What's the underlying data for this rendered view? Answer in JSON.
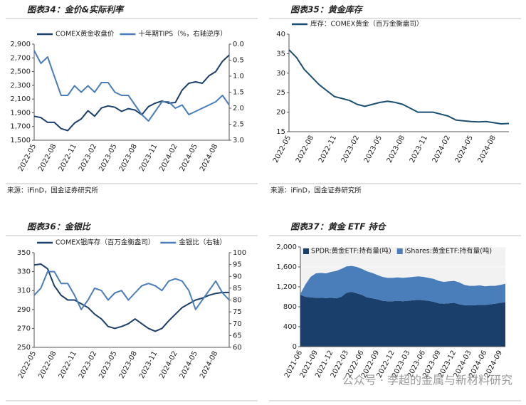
{
  "chart_data": [
    {
      "type": "line",
      "title": "图表34：金价&实际利率",
      "source": "来源：iFinD，国金证券研究所",
      "categories": [
        "2022-05",
        "2022-06",
        "2022-07",
        "2022-08",
        "2022-09",
        "2022-10",
        "2022-11",
        "2022-12",
        "2023-01",
        "2023-02",
        "2023-03",
        "2023-04",
        "2023-05",
        "2023-06",
        "2023-07",
        "2023-08",
        "2023-09",
        "2023-10",
        "2023-11",
        "2023-12",
        "2024-01",
        "2024-02",
        "2024-03",
        "2024-04",
        "2024-05",
        "2024-06",
        "2024-07",
        "2024-08",
        "2024-09",
        "2024-10"
      ],
      "xticks": [
        "2022-05",
        "2022-08",
        "2022-11",
        "2023-02",
        "2023-05",
        "2023-08",
        "2023-11",
        "2024-02",
        "2024-05",
        "2024-08"
      ],
      "ylim": [
        1500,
        2900
      ],
      "yticks": [
        {
          "value": 1500,
          "label": "1,500"
        },
        {
          "value": 1700,
          "label": "1,700"
        },
        {
          "value": 1900,
          "label": "1,900"
        },
        {
          "value": 2100,
          "label": "2,100"
        },
        {
          "value": 2300,
          "label": "2,300"
        },
        {
          "value": 2500,
          "label": "2,500"
        },
        {
          "value": 2700,
          "label": "2,700"
        },
        {
          "value": 2900,
          "label": "2,900"
        }
      ],
      "y2lim": [
        3,
        0
      ],
      "y2ticks": [
        {
          "value": 0,
          "label": "0.0"
        },
        0.5,
        {
          "value": 1,
          "label": "1.0"
        },
        1.5,
        {
          "value": 2,
          "label": "2.0"
        },
        2.5,
        {
          "value": 3,
          "label": "3.0"
        }
      ],
      "series": [
        {
          "name": "COMEX黄金收盘价",
          "color": "#1b3f6b",
          "values": [
            1850,
            1830,
            1760,
            1760,
            1670,
            1640,
            1750,
            1810,
            1930,
            1850,
            1970,
            2000,
            1980,
            1920,
            1960,
            1940,
            1870,
            1990,
            2040,
            2070,
            2040,
            2050,
            2230,
            2330,
            2350,
            2330,
            2440,
            2500,
            2650,
            2740
          ]
        },
        {
          "name": "十年期TIPS（%，右轴逆序）",
          "color": "#4a7ebb",
          "axis": "y2",
          "values": [
            0.2,
            0.6,
            0.4,
            1.0,
            1.6,
            1.6,
            1.3,
            1.5,
            1.3,
            1.5,
            1.2,
            1.2,
            1.5,
            1.6,
            1.6,
            1.9,
            2.2,
            2.4,
            2.1,
            1.8,
            1.8,
            2.0,
            1.9,
            2.2,
            2.1,
            2.0,
            1.9,
            1.8,
            1.6,
            1.9
          ]
        }
      ]
    },
    {
      "type": "line",
      "title": "图表35：黄金库存",
      "source": "来源：iFinD，国金证券研究所",
      "categories": [
        "2022-05",
        "2022-06",
        "2022-07",
        "2022-08",
        "2022-09",
        "2022-10",
        "2022-11",
        "2022-12",
        "2023-01",
        "2023-02",
        "2023-03",
        "2023-04",
        "2023-05",
        "2023-06",
        "2023-07",
        "2023-08",
        "2023-09",
        "2023-10",
        "2023-11",
        "2023-12",
        "2024-01",
        "2024-02",
        "2024-03",
        "2024-04",
        "2024-05",
        "2024-06",
        "2024-07",
        "2024-08",
        "2024-09",
        "2024-10"
      ],
      "xticks": [
        "2022-05",
        "2022-08",
        "2022-11",
        "2023-02",
        "2023-05",
        "2023-08",
        "2023-11",
        "2024-02",
        "2024-05",
        "2024-08"
      ],
      "ylim": [
        15,
        40
      ],
      "yticks": [
        15,
        20,
        25,
        30,
        35,
        40
      ],
      "series": [
        {
          "name": "库存：COMEX黄金（百万金衡盎司）",
          "color": "#1b4f72",
          "values": [
            36,
            34,
            31,
            29,
            27,
            25.5,
            24,
            23.5,
            23,
            22,
            21.5,
            22,
            22.5,
            22.8,
            22.5,
            22,
            21,
            20,
            20,
            20,
            19.5,
            19,
            18,
            17.8,
            17.6,
            17.5,
            17.6,
            17.3,
            17.0,
            17.1
          ]
        }
      ]
    },
    {
      "type": "line",
      "title": "图表36：金银比",
      "source": "来源：iFinD，国金证券研究所",
      "categories": [
        "2022-05",
        "2022-06",
        "2022-07",
        "2022-08",
        "2022-09",
        "2022-10",
        "2022-11",
        "2022-12",
        "2023-01",
        "2023-02",
        "2023-03",
        "2023-04",
        "2023-05",
        "2023-06",
        "2023-07",
        "2023-08",
        "2023-09",
        "2023-10",
        "2023-11",
        "2023-12",
        "2024-01",
        "2024-02",
        "2024-03",
        "2024-04",
        "2024-05",
        "2024-06",
        "2024-07",
        "2024-08",
        "2024-09",
        "2024-10"
      ],
      "xticks": [
        "2022-05",
        "2022-08",
        "2022-11",
        "2023-02",
        "2023-05",
        "2023-08",
        "2023-11",
        "2024-02",
        "2024-05",
        "2024-08"
      ],
      "ylim": [
        250,
        350
      ],
      "yticks": [
        250,
        270,
        290,
        310,
        330,
        350
      ],
      "y2lim": [
        60,
        100
      ],
      "y2ticks": [
        60,
        65,
        70,
        75,
        80,
        85,
        90,
        95,
        100
      ],
      "series": [
        {
          "name": "COMEX银库存（百万金衡盎司）",
          "color": "#1b3f6b",
          "values": [
            337,
            338,
            333,
            315,
            305,
            300,
            300,
            296,
            292,
            285,
            280,
            272,
            270,
            272,
            275,
            280,
            275,
            270,
            267,
            270,
            278,
            285,
            292,
            296,
            300,
            302,
            305,
            307,
            308,
            308
          ]
        },
        {
          "name": "金银比（右轴）",
          "color": "#4a7ebb",
          "axis": "y2",
          "values": [
            82,
            85,
            92,
            92,
            87,
            87,
            82,
            76,
            80,
            85,
            84,
            80,
            83,
            84,
            80,
            83,
            86,
            87,
            86,
            84,
            88,
            89,
            88,
            84,
            76,
            80,
            84,
            88,
            83,
            80
          ]
        }
      ]
    },
    {
      "type": "area",
      "title": "图表37：黄金 ETF 持仓",
      "source": "来源：iFinD，国金证券研究所",
      "categories": [
        "2021-06",
        "2021-07",
        "2021-08",
        "2021-09",
        "2021-10",
        "2021-11",
        "2021-12",
        "2022-01",
        "2022-02",
        "2022-03",
        "2022-04",
        "2022-05",
        "2022-06",
        "2022-07",
        "2022-08",
        "2022-09",
        "2022-10",
        "2022-11",
        "2022-12",
        "2023-01",
        "2023-02",
        "2023-03",
        "2023-04",
        "2023-05",
        "2023-06",
        "2023-07",
        "2023-08",
        "2023-09",
        "2023-10",
        "2023-11",
        "2023-12",
        "2024-01",
        "2024-02",
        "2024-03",
        "2024-04",
        "2024-05",
        "2024-06",
        "2024-07",
        "2024-08",
        "2024-09",
        "2024-10"
      ],
      "xticks": [
        "2021-06",
        "2021-09",
        "2021-12",
        "2022-03",
        "2022-06",
        "2022-09",
        "2022-12",
        "2023-03",
        "2023-06",
        "2023-09",
        "2023-12",
        "2024-03",
        "2024-06",
        "2024-09"
      ],
      "ylim": [
        0,
        2000
      ],
      "yticks": [
        0,
        400,
        800,
        {
          "value": 1200,
          "label": "1,200"
        },
        {
          "value": 1600,
          "label": "1,600"
        },
        {
          "value": 2000,
          "label": "2,000"
        }
      ],
      "series": [
        {
          "name": "SPDR:黄金ETF:持有量(吨)",
          "color": "#1b3f6b",
          "values": [
            1040,
            1000,
            990,
            980,
            980,
            975,
            980,
            970,
            1000,
            1080,
            1100,
            1070,
            1040,
            990,
            970,
            950,
            920,
            910,
            910,
            920,
            910,
            920,
            930,
            940,
            930,
            920,
            900,
            870,
            860,
            870,
            880,
            850,
            830,
            830,
            830,
            840,
            835,
            850,
            860,
            880,
            890
          ]
        },
        {
          "name": "iShares:黄金ETF:持有量(吨)",
          "color": "#4a7ebb",
          "values": [
            20,
            250,
            410,
            490,
            500,
            495,
            520,
            550,
            560,
            530,
            520,
            530,
            520,
            520,
            510,
            490,
            480,
            470,
            470,
            470,
            470,
            470,
            470,
            470,
            470,
            460,
            460,
            450,
            440,
            440,
            440,
            440,
            410,
            390,
            390,
            390,
            375,
            370,
            360,
            360,
            370
          ]
        }
      ]
    }
  ],
  "watermark": "公众号 · 李超的金属与新材料研究"
}
